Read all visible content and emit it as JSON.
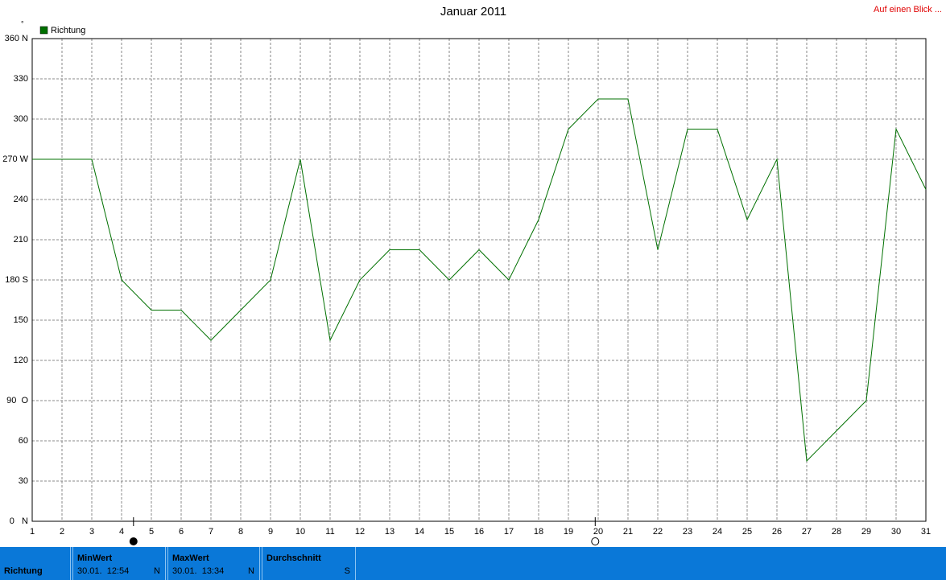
{
  "chart_data": {
    "type": "line",
    "title": "Januar 2011",
    "y_unit": "°",
    "x": [
      1,
      2,
      3,
      4,
      5,
      6,
      7,
      8,
      9,
      10,
      11,
      12,
      13,
      14,
      15,
      16,
      17,
      18,
      19,
      20,
      21,
      22,
      23,
      24,
      25,
      26,
      27,
      28,
      29,
      30,
      31
    ],
    "xlim": [
      1,
      31
    ],
    "xticks": [
      1,
      2,
      3,
      4,
      5,
      6,
      7,
      8,
      9,
      10,
      11,
      12,
      13,
      14,
      15,
      16,
      17,
      18,
      19,
      20,
      21,
      22,
      23,
      24,
      25,
      26,
      27,
      28,
      29,
      30,
      31
    ],
    "ylim": [
      0,
      360
    ],
    "yticks": [
      {
        "value": 0,
        "label": "0   N"
      },
      30,
      60,
      {
        "value": 90,
        "label": "90  O"
      },
      120,
      150,
      {
        "value": 180,
        "label": "180 S"
      },
      210,
      240,
      {
        "value": 270,
        "label": "270 W"
      },
      300,
      330,
      {
        "value": 360,
        "label": "360 N"
      }
    ],
    "grid": true,
    "series": [
      {
        "name": "Richtung",
        "color": "#007000",
        "values": [
          270,
          270,
          270,
          180,
          157.5,
          157.5,
          135,
          157.5,
          180,
          270,
          135,
          180,
          202.5,
          202.5,
          180,
          202.5,
          180,
          225,
          292.5,
          315,
          315,
          202.5,
          292.5,
          292.5,
          225,
          270,
          45,
          67.5,
          90,
          292.5,
          247.5
        ]
      }
    ],
    "markers": [
      {
        "x": 4.4,
        "filled": true
      },
      {
        "x": 19.9,
        "filled": false
      }
    ]
  },
  "header": {
    "link": "Auf einen Blick ..."
  },
  "summary": {
    "label": "Richtung",
    "cells": [
      {
        "title": "MinWert",
        "time": "30.01.  12:54",
        "value": "N"
      },
      {
        "title": "MaxWert",
        "time": "30.01.  13:34",
        "value": "N"
      },
      {
        "title": "Durchschnitt",
        "value": "S"
      }
    ]
  }
}
